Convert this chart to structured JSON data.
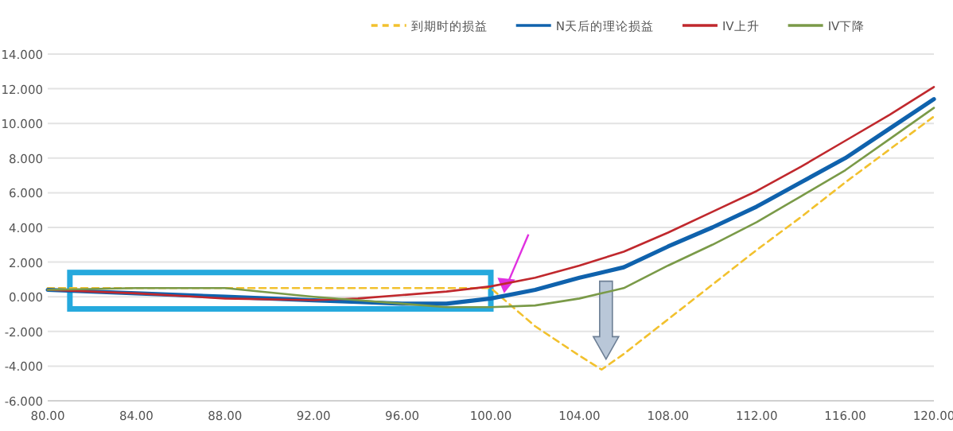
{
  "chart_data": {
    "type": "line",
    "x": [
      80,
      84,
      88,
      92,
      94,
      96,
      98,
      100,
      102,
      104,
      105,
      106,
      108,
      110,
      112,
      114,
      116,
      118,
      120
    ],
    "series": [
      {
        "name": "到期时的损益",
        "color": "#f2c12e",
        "line_style": "dashed",
        "values": [
          0.5,
          0.5,
          0.5,
          0.5,
          0.5,
          0.5,
          0.5,
          0.5,
          -1.7,
          -3.4,
          -4.2,
          -3.3,
          -1.3,
          0.7,
          2.7,
          4.6,
          6.6,
          8.5,
          10.4
        ]
      },
      {
        "name": "N天后的理论损益",
        "color": "#0f62ad",
        "values": [
          0.4,
          0.2,
          0.0,
          -0.2,
          -0.3,
          -0.4,
          -0.4,
          -0.1,
          0.4,
          1.1,
          1.4,
          1.7,
          2.9,
          4.0,
          5.2,
          6.6,
          8.0,
          9.7,
          11.4
        ]
      },
      {
        "name": "IV上升",
        "color": "#c0282d",
        "values": [
          0.4,
          0.2,
          -0.1,
          -0.2,
          -0.1,
          0.1,
          0.3,
          0.6,
          1.1,
          1.8,
          2.2,
          2.6,
          3.7,
          4.9,
          6.1,
          7.5,
          9.0,
          10.5,
          12.1
        ]
      },
      {
        "name": "IV下降",
        "color": "#7a9a48",
        "values": [
          0.4,
          0.5,
          0.5,
          0.0,
          -0.2,
          -0.4,
          -0.6,
          -0.6,
          -0.5,
          -0.1,
          0.2,
          0.5,
          1.8,
          3.0,
          4.3,
          5.8,
          7.3,
          9.1,
          10.9
        ]
      }
    ],
    "xlim": [
      80,
      120
    ],
    "xticks": [
      {
        "value": 80,
        "label": "80.00"
      },
      {
        "value": 84,
        "label": "84.00"
      },
      {
        "value": 88,
        "label": "88.00"
      },
      {
        "value": 92,
        "label": "92.00"
      },
      {
        "value": 96,
        "label": "96.00"
      },
      {
        "value": 100,
        "label": "100.00"
      },
      {
        "value": 104,
        "label": "104.00"
      },
      {
        "value": 108,
        "label": "108.00"
      },
      {
        "value": 112,
        "label": "112.00"
      },
      {
        "value": 116,
        "label": "116.00"
      },
      {
        "value": 120,
        "label": "120.00"
      }
    ],
    "ylim": [
      -6,
      14
    ],
    "yticks": [
      {
        "value": -6,
        "label": "-6.000"
      },
      {
        "value": -4,
        "label": "-4.000"
      },
      {
        "value": -2,
        "label": "-2.000"
      },
      {
        "value": 0,
        "label": "0.000"
      },
      {
        "value": 2,
        "label": "2.000"
      },
      {
        "value": 4,
        "label": "4.000"
      },
      {
        "value": 6,
        "label": "6.000"
      },
      {
        "value": 8,
        "label": "8.000"
      },
      {
        "value": 10,
        "label": "10.000"
      },
      {
        "value": 12,
        "label": "12.000"
      },
      {
        "value": 14,
        "label": "14.000"
      }
    ],
    "grid": "y",
    "legend": "top",
    "marker": "none"
  }
}
